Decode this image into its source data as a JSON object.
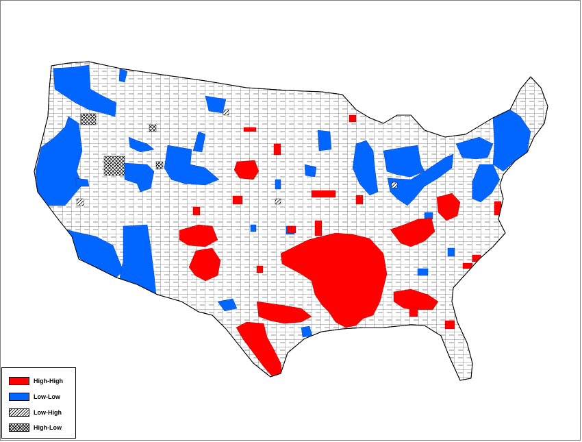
{
  "legend": {
    "items": [
      {
        "label": "High-High",
        "pattern": "solid",
        "color": "#ff0000"
      },
      {
        "label": "Low-Low",
        "pattern": "solid",
        "color": "#0066ff"
      },
      {
        "label": "Low-High",
        "pattern": "diagonal-hatch",
        "color": "#000000"
      },
      {
        "label": "High-Low",
        "pattern": "cross-hatch",
        "color": "#000000"
      }
    ]
  },
  "colors": {
    "high_high": "#ff0000",
    "low_low": "#0066ff",
    "county_border": "#000000",
    "background": "#ffffff"
  }
}
